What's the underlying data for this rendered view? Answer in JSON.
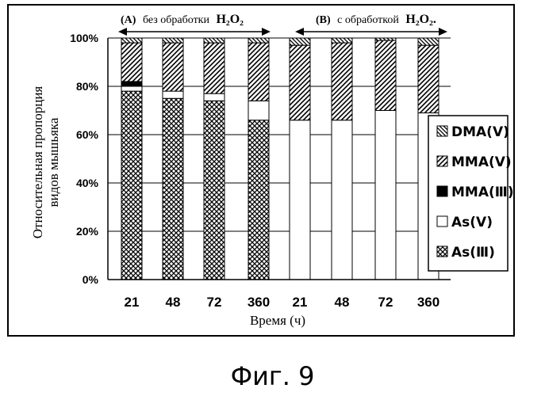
{
  "caption": "Фиг. 9",
  "chart_data": {
    "type": "bar",
    "stacked": true,
    "ylabel": "Относительная пропорция видов мышьяка",
    "ylabel_lines": [
      "Относительная пропорция",
      "видов мышьяка"
    ],
    "xlabel": "Время (ч)",
    "ylim": [
      0,
      100
    ],
    "yticks": [
      "0%",
      "20%",
      "40%",
      "60%",
      "80%",
      "100%"
    ],
    "categories": [
      "21",
      "48",
      "72",
      "360",
      "21",
      "48",
      "72",
      "360"
    ],
    "groups": [
      {
        "label_prefix": "(A)",
        "label_text": "без обработки",
        "label_chem": "H₂O₂"
      },
      {
        "label_prefix": "(B)",
        "label_text": "с обработкой",
        "label_chem": "H₂O₂."
      }
    ],
    "legend_position": "right",
    "grid": true,
    "series": [
      {
        "name": "As(Ⅲ)",
        "pattern": "crosshatch",
        "values": [
          78,
          75,
          74,
          66,
          0,
          0,
          0,
          0
        ]
      },
      {
        "name": "As(Ⅴ)",
        "pattern": "white",
        "values": [
          2,
          3,
          3,
          8,
          66,
          66,
          70,
          69
        ]
      },
      {
        "name": "MMA(Ⅲ)",
        "pattern": "solid",
        "values": [
          2,
          0,
          0,
          0,
          0,
          0,
          0,
          0
        ]
      },
      {
        "name": "MMA(Ⅴ)",
        "pattern": "hatch-up",
        "values": [
          16,
          20,
          21,
          24,
          31,
          32,
          29,
          28
        ]
      },
      {
        "name": "DMA(Ⅴ)",
        "pattern": "hatch-down",
        "values": [
          2,
          2,
          2,
          2,
          3,
          2,
          1,
          3
        ]
      }
    ]
  }
}
